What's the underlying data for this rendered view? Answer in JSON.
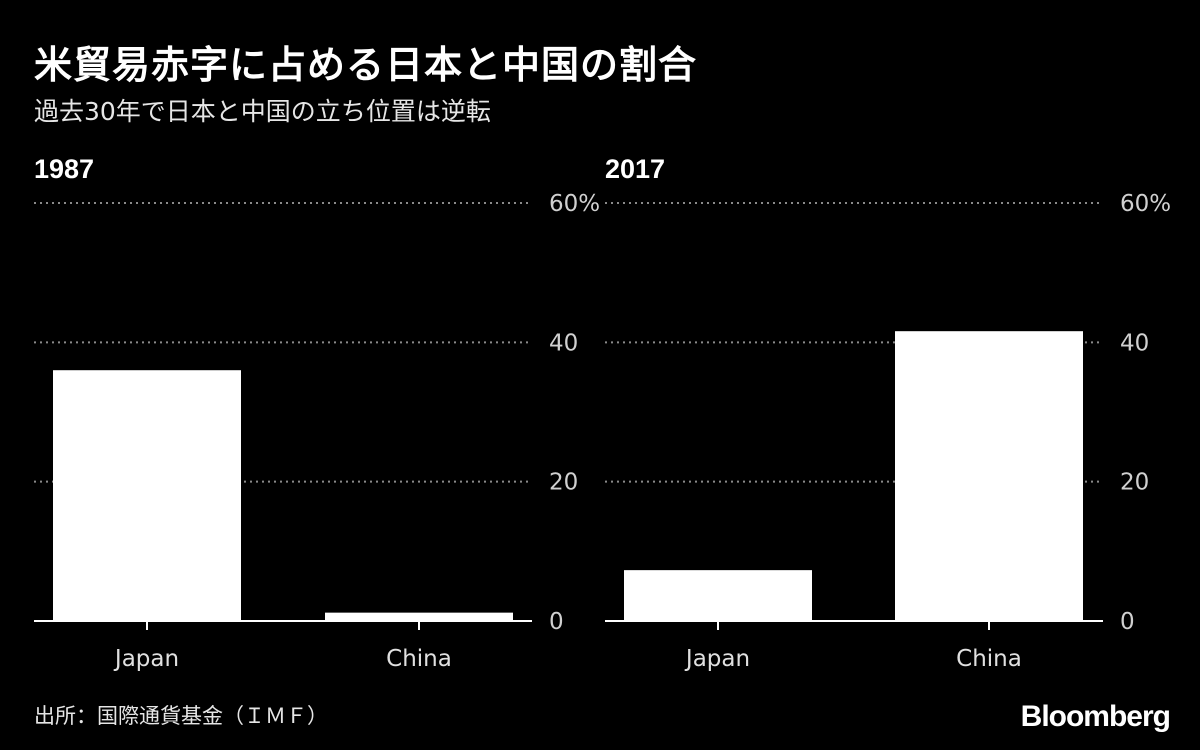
{
  "title": "米貿易赤字に占める日本と中国の割合",
  "subtitle": "過去30年で日本と中国の立ち位置は逆転",
  "source": "出所：国際通貨基金（ＩＭＦ）",
  "logo": "Bloomberg",
  "colors": {
    "background": "#000000",
    "bar": "#ffffff",
    "grid": "#8a8a8a"
  },
  "chart_data": [
    {
      "type": "bar",
      "title": "1987",
      "categories": [
        "Japan",
        "China"
      ],
      "values": [
        36,
        1.2
      ],
      "ylim": [
        0,
        60
      ],
      "yticks": [
        "0",
        "20",
        "40",
        "60%"
      ],
      "grid": true
    },
    {
      "type": "bar",
      "title": "2017",
      "categories": [
        "Japan",
        "China"
      ],
      "values": [
        7.3,
        41.6
      ],
      "ylim": [
        0,
        60
      ],
      "yticks": [
        "0",
        "20",
        "40",
        "60%"
      ],
      "grid": true
    }
  ]
}
